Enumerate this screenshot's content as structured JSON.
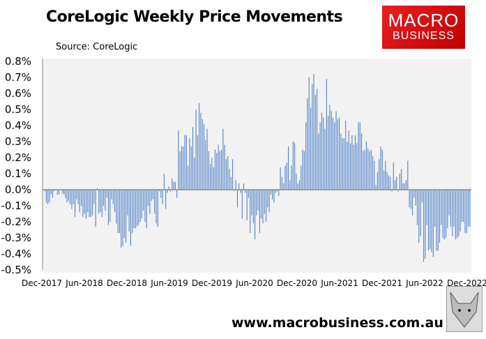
{
  "chart_data": {
    "type": "bar",
    "title": "CoreLogic Weekly Price Movements",
    "subtitle": "Source: CoreLogic",
    "ylim": [
      -0.5,
      0.8
    ],
    "y_ticks": [
      "0.8%",
      "0.7%",
      "0.6%",
      "0.5%",
      "0.4%",
      "0.3%",
      "0.2%",
      "0.1%",
      "0.0%",
      "-0.1%",
      "-0.2%",
      "-0.3%",
      "-0.4%",
      "-0.5%"
    ],
    "x_ticks": [
      "Dec-2017",
      "Jun-2018",
      "Dec-2018",
      "Jun-2019",
      "Dec-2019",
      "Jun-2020",
      "Dec-2020",
      "Jun-2021",
      "Dec-2021",
      "Jun-2022",
      "Dec-2022"
    ],
    "x_range": [
      "Dec-2017",
      "Jan-2023"
    ],
    "frequency": "weekly",
    "unit": "%",
    "bar_color": "#4f81c7",
    "plot_background": "#f2f2f2",
    "grid": false,
    "values": [
      -0.01,
      -0.08,
      -0.09,
      -0.08,
      -0.03,
      -0.05,
      -0.01,
      0,
      -0.03,
      -0.03,
      0,
      -0.02,
      -0.03,
      -0.05,
      -0.08,
      -0.07,
      -0.09,
      -0.12,
      -0.09,
      -0.17,
      -0.06,
      -0.09,
      -0.14,
      -0.1,
      -0.17,
      -0.15,
      -0.18,
      -0.14,
      -0.17,
      -0.17,
      -0.16,
      -0.09,
      -0.23,
      0.01,
      -0.15,
      -0.14,
      -0.17,
      -0.1,
      -0.13,
      -0.05,
      -0.22,
      -0.2,
      -0.06,
      -0.09,
      -0.14,
      -0.21,
      -0.27,
      -0.27,
      -0.36,
      -0.35,
      -0.3,
      -0.33,
      -0.16,
      -0.26,
      -0.35,
      -0.27,
      -0.24,
      -0.24,
      -0.23,
      -0.22,
      -0.2,
      -0.18,
      -0.13,
      -0.2,
      -0.24,
      -0.1,
      -0.15,
      -0.07,
      -0.06,
      -0.15,
      -0.21,
      -0.23,
      -0.01,
      -0.05,
      -0.09,
      0.1,
      -0.12,
      -0.02,
      0.02,
      -0.01,
      0.07,
      0.05,
      0.05,
      -0.05,
      0.37,
      0.24,
      0.27,
      0.27,
      0.34,
      0.34,
      0.15,
      0.32,
      0.27,
      0.39,
      0.2,
      0.5,
      0.34,
      0.54,
      0.48,
      0.44,
      0.41,
      0.31,
      0.38,
      0.24,
      0.16,
      0.2,
      0.14,
      0.25,
      0.23,
      0.28,
      0.24,
      0.25,
      0.38,
      0.28,
      0.19,
      0.21,
      0.13,
      0.08,
      0.19,
      -0.01,
      0.06,
      -0.11,
      0.04,
      -0.02,
      -0.18,
      0.04,
      -0.02,
      -0.19,
      -0.05,
      -0.27,
      -0.16,
      -0.21,
      -0.31,
      -0.16,
      -0.13,
      -0.27,
      -0.18,
      -0.21,
      -0.15,
      -0.2,
      -0.11,
      -0.14,
      -0.03,
      -0.06,
      -0.08,
      -0.02,
      -0.01,
      -0.04,
      0.14,
      0.08,
      0.04,
      0.15,
      0.17,
      0.27,
      0.06,
      0.15,
      0.3,
      0.29,
      0.1,
      0.04,
      0.06,
      0.15,
      0.25,
      0.24,
      0.42,
      0.57,
      0.7,
      0.51,
      0.66,
      0.72,
      0.59,
      0.63,
      0.35,
      0.42,
      0.48,
      0.45,
      0.38,
      0.69,
      0.46,
      0.53,
      0.49,
      0.45,
      0.42,
      0.49,
      0.44,
      0.45,
      0.35,
      0.32,
      0.32,
      0.43,
      0.3,
      0.37,
      0.29,
      0.34,
      0.28,
      0.34,
      0.29,
      0.42,
      0.42,
      0.35,
      0.24,
      0.25,
      0.3,
      0.26,
      0.24,
      0.25,
      0.21,
      0.18,
      0.03,
      0.11,
      0.19,
      0.27,
      0.25,
      0.12,
      0.18,
      0.11,
      0.09,
      0.08,
      -0.01,
      0.17,
      0.06,
      0.08,
      -0.01,
      0.1,
      0.13,
      0.04,
      0.04,
      0.06,
      0.18,
      -0.11,
      -0.12,
      -0.16,
      -0.05,
      -0.1,
      -0.22,
      -0.33,
      -0.29,
      -0.08,
      -0.45,
      -0.43,
      -0.22,
      -0.38,
      -0.37,
      -0.39,
      -0.42,
      -0.23,
      -0.38,
      -0.38,
      -0.33,
      -0.22,
      -0.3,
      -0.31,
      -0.3,
      -0.24,
      -0.16,
      -0.23,
      -0.29,
      -0.23,
      -0.31,
      -0.3,
      -0.29,
      -0.26,
      -0.2,
      -0.2,
      -0.27,
      -0.27,
      -0.23,
      -0.23
    ]
  },
  "logo": {
    "line1": "MACRO",
    "line2": "BUSINESS"
  },
  "footer": {
    "url": "www.macrobusiness.com.au",
    "mascot_icon": "fox-head-icon"
  }
}
